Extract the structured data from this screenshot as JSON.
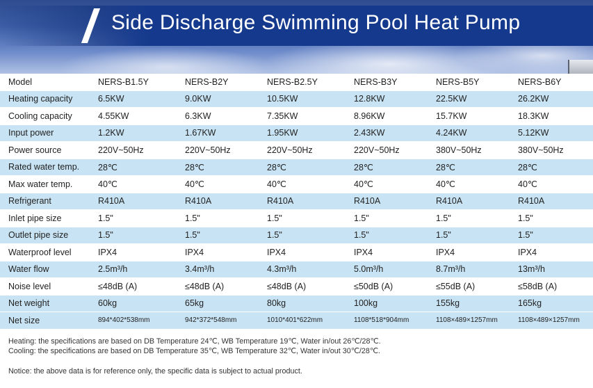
{
  "header": {
    "title": "Side Discharge Swimming Pool Heat Pump"
  },
  "table": {
    "columns": [
      "Model",
      "NERS-B1.5Y",
      "NERS-B2Y",
      "NERS-B2.5Y",
      "NERS-B3Y",
      "NERS-B5Y",
      "NERS-B6Y"
    ],
    "rows": [
      [
        "Heating capacity",
        "6.5KW",
        "9.0KW",
        "10.5KW",
        "12.8KW",
        "22.5KW",
        "26.2KW"
      ],
      [
        "Cooling capacity",
        "4.55KW",
        "6.3KW",
        "7.35KW",
        "8.96KW",
        "15.7KW",
        "18.3KW"
      ],
      [
        "Input power",
        "1.2KW",
        "1.67KW",
        "1.95KW",
        "2.43KW",
        "4.24KW",
        "5.12KW"
      ],
      [
        "Power source",
        "220V~50Hz",
        "220V~50Hz",
        "220V~50Hz",
        "220V~50Hz",
        "380V~50Hz",
        "380V~50Hz"
      ],
      [
        "Rated water temp.",
        "28℃",
        "28℃",
        "28℃",
        "28℃",
        "28℃",
        "28℃"
      ],
      [
        "Max water temp.",
        "40℃",
        "40℃",
        "40℃",
        "40℃",
        "40℃",
        "40℃"
      ],
      [
        "Refrigerant",
        "R410A",
        "R410A",
        "R410A",
        "R410A",
        "R410A",
        "R410A"
      ],
      [
        "Inlet pipe size",
        "1.5\"",
        "1.5\"",
        "1.5\"",
        "1.5\"",
        "1.5\"",
        "1.5\""
      ],
      [
        "Outlet pipe size",
        "1.5\"",
        "1.5\"",
        "1.5\"",
        "1.5\"",
        "1.5\"",
        "1.5\""
      ],
      [
        "Waterproof level",
        "IPX4",
        "IPX4",
        "IPX4",
        "IPX4",
        "IPX4",
        "IPX4"
      ],
      [
        "Water flow",
        "2.5m³/h",
        "3.4m³/h",
        "4.3m³/h",
        "5.0m³/h",
        "8.7m³/h",
        "13m³/h"
      ],
      [
        "Noise level",
        "≤48dB (A)",
        "≤48dB (A)",
        "≤48dB (A)",
        "≤50dB (A)",
        "≤55dB (A)",
        "≤58dB (A)"
      ],
      [
        "Net weight",
        "60kg",
        "65kg",
        "80kg",
        "100kg",
        "155kg",
        "165kg"
      ],
      [
        "Net size",
        "894*402*538mm",
        "942*372*548mm",
        "1010*401*622mm",
        "1108*518*904mm",
        "1108×489×1257mm",
        "1108×489×1257mm"
      ]
    ]
  },
  "notes": {
    "heating": "Heating: the specifications are based on  DB Temperature 24℃, WB Temperature 19℃, Water in/out 26℃/28℃.",
    "cooling": "Cooling: the specifications are based on  DB Temperature 35℃, WB Temperature 32℃, Water in/out 30℃/28℃.",
    "notice": "Notice: the above data is for reference only, the specific data is subject to actual product."
  }
}
